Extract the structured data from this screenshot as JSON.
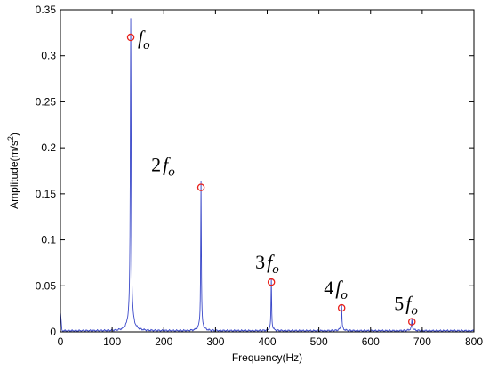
{
  "chart_data": {
    "type": "line",
    "title": "",
    "xlabel": "Frequency(Hz)",
    "ylabel_parts": [
      "Amplitude(m/s",
      "2",
      ")"
    ],
    "xlim": [
      0,
      800
    ],
    "ylim": [
      0,
      0.35
    ],
    "xticks": [
      "0",
      "100",
      "200",
      "300",
      "400",
      "500",
      "600",
      "700",
      "800"
    ],
    "yticks": [
      "0",
      "0.05",
      "0.1",
      "0.15",
      "0.2",
      "0.25",
      "0.3",
      "0.35"
    ],
    "grid": false,
    "line_color": "#3b49c9",
    "marker_color": "#e8201a",
    "peaks": [
      {
        "x": 136,
        "y": 0.32,
        "label": "f",
        "multiplier": "",
        "subscript": "o"
      },
      {
        "x": 272,
        "y": 0.157,
        "label": "f",
        "multiplier": "2",
        "subscript": "o"
      },
      {
        "x": 408,
        "y": 0.054,
        "label": "f",
        "multiplier": "3",
        "subscript": "o"
      },
      {
        "x": 544,
        "y": 0.026,
        "label": "f",
        "multiplier": "4",
        "subscript": "o"
      },
      {
        "x": 680,
        "y": 0.011,
        "label": "f",
        "multiplier": "5",
        "subscript": "o"
      }
    ]
  }
}
